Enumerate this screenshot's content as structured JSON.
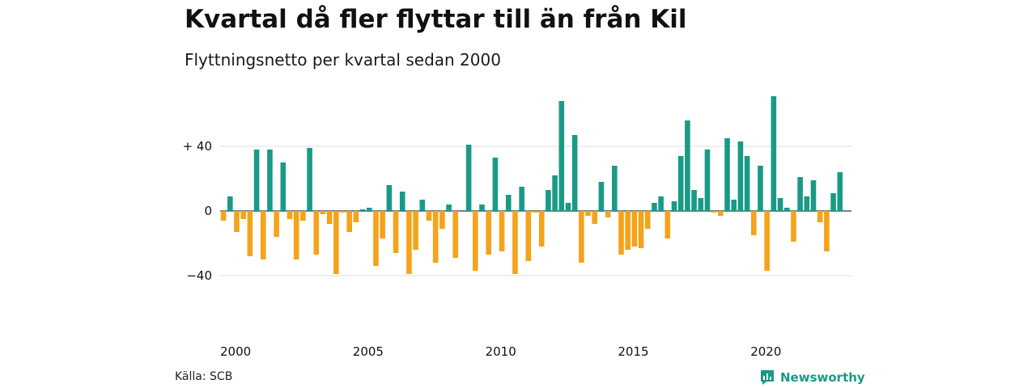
{
  "title": "Kvartal då fler flyttar till än från Kil",
  "subtitle": "Flyttningsnetto per kvartal sedan 2000",
  "source": "Källa: SCB",
  "brand": {
    "name": "Newsworthy",
    "icon": "newsworthy-logo-icon"
  },
  "colors": {
    "positive": "#1a9a86",
    "negative": "#f5a31a",
    "grid": "#dddddd",
    "zero_line": "#333333"
  },
  "chart_data": {
    "type": "bar",
    "title": "Kvartal då fler flyttar till än från Kil",
    "subtitle": "Flyttningsnetto per kvartal sedan 2000",
    "start_year": 2000,
    "start_quarter": 1,
    "xticks": [
      2000,
      2005,
      2010,
      2015,
      2020
    ],
    "xtick_labels": [
      "2000",
      "2005",
      "2010",
      "2015",
      "2020"
    ],
    "yticks": [
      -40,
      0,
      40
    ],
    "ytick_labels": [
      "−40",
      "0",
      "+ 40"
    ],
    "ylim": [
      -55,
      75
    ],
    "grid": true,
    "values": [
      -6,
      9,
      -13,
      -5,
      -28,
      38,
      -30,
      38,
      -16,
      30,
      -5,
      -30,
      -6,
      39,
      -27,
      -2,
      -8,
      -39,
      -1,
      -13,
      -7,
      1,
      2,
      -34,
      -17,
      16,
      -26,
      12,
      -39,
      -24,
      7,
      -6,
      -32,
      -11,
      4,
      -29,
      0,
      41,
      -37,
      4,
      -27,
      33,
      -25,
      10,
      -39,
      15,
      -31,
      -1,
      -22,
      13,
      22,
      68,
      5,
      47,
      -32,
      -3,
      -8,
      18,
      -4,
      28,
      -27,
      -24,
      -22,
      -23,
      -11,
      5,
      9,
      -17,
      6,
      34,
      56,
      13,
      8,
      38,
      -1,
      -3,
      45,
      7,
      43,
      34,
      -15,
      28,
      -37,
      71,
      8,
      2,
      -19,
      21,
      9,
      19,
      -7,
      -25,
      11,
      24
    ]
  }
}
